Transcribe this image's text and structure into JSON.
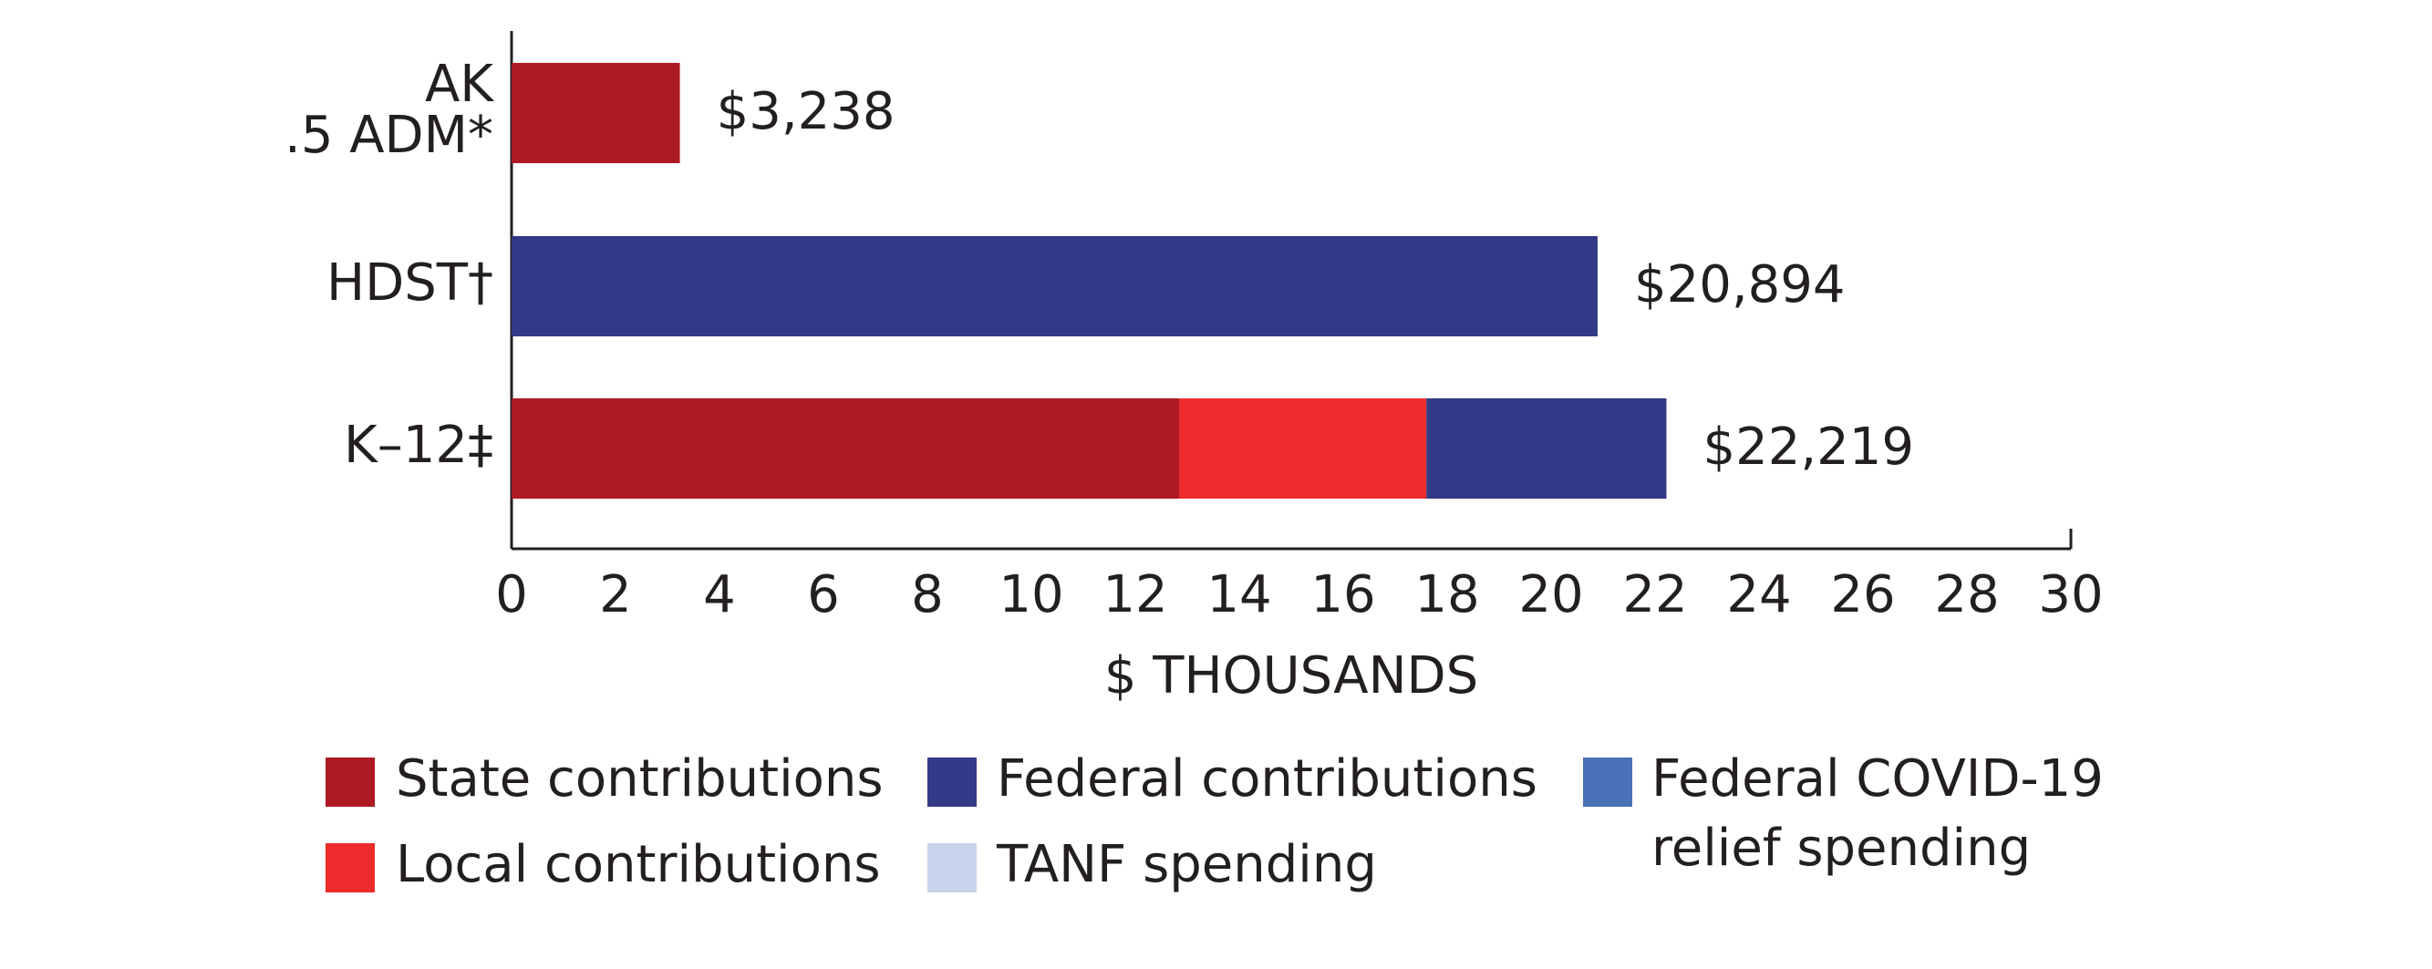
{
  "chart_data": {
    "type": "stacked-barh",
    "categories": [
      "AK\n.5 ADM*",
      "HDST†",
      "K–12‡"
    ],
    "series": [
      {
        "name": "State contributions",
        "color": "#ae1a23",
        "values": [
          3.238,
          null,
          12.85
        ]
      },
      {
        "name": "Local contributions",
        "color": "#ee2c2c",
        "values": [
          null,
          null,
          4.75
        ]
      },
      {
        "name": "Federal contributions",
        "color": "#323a85",
        "values": [
          null,
          20.894,
          4.619
        ]
      },
      {
        "name": "TANF spending",
        "color": "#c8d4ec",
        "values": [
          null,
          null,
          null
        ]
      },
      {
        "name": "Federal COVID-19 relief spending",
        "color": "#4a70b8",
        "values": [
          null,
          null,
          null
        ]
      }
    ],
    "totals": [
      3.238,
      20.894,
      22.219
    ],
    "total_labels": [
      "$3,238",
      "$20,894",
      "$22,219"
    ],
    "xlabel": "$ THOUSANDS",
    "xlim": [
      0,
      30
    ],
    "xticks": [
      0,
      2,
      4,
      6,
      8,
      10,
      12,
      14,
      16,
      18,
      20,
      22,
      24,
      26,
      28,
      30
    ]
  }
}
